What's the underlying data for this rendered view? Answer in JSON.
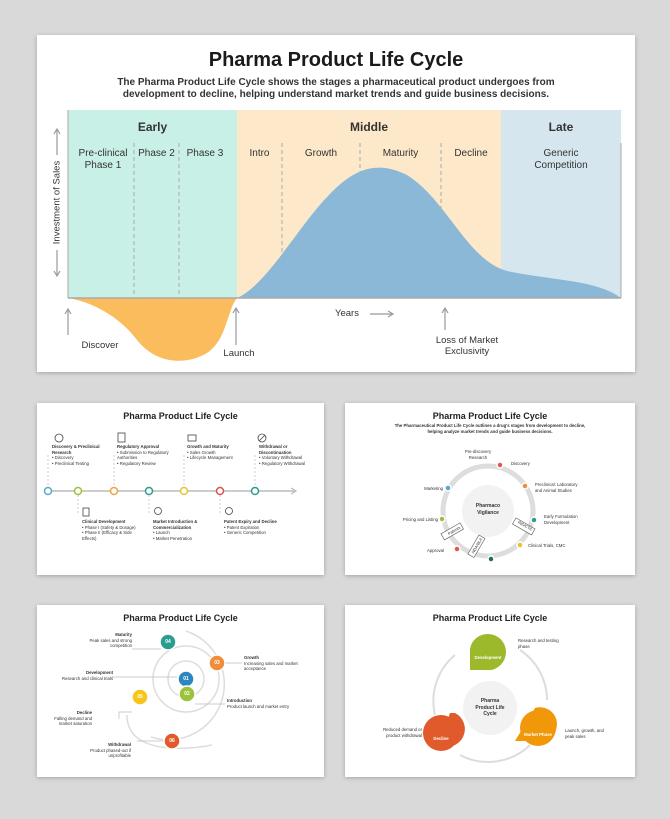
{
  "main": {
    "title": "Pharma Product Life Cycle",
    "subtitle_line1": "The Pharma Product Life Cycle shows the stages a pharmaceutical product undergoes from",
    "subtitle_line2": "development to decline, helping understand market trends and guide business decisions.",
    "stages": {
      "early": "Early",
      "middle": "Middle",
      "late": "Late"
    },
    "phases": {
      "preclinical": "Pre-clinical\nPhase 1",
      "phase2": "Phase 2",
      "phase3": "Phase 3",
      "intro": "Intro",
      "growth": "Growth",
      "maturity": "Maturity",
      "decline": "Decline",
      "generic": "Generic\nCompetition"
    },
    "y_axis_label": "Investment of Sales",
    "x_axis_label": "Years",
    "annotations": {
      "discover": "Discover",
      "launch": "Launch",
      "loss": "Loss of Market\nExclusivity"
    },
    "colors": {
      "early": "#c9f0e6",
      "middle": "#fde9c9",
      "late": "#d6e6ef",
      "curve": "#8ab8d6",
      "dip": "#fbbc5d"
    }
  },
  "thumb1": {
    "title": "Pharma Product Life Cycle",
    "top_items": [
      {
        "title": "Discovery & Preclinical Research",
        "bullets": [
          "Discovery",
          "Preclinical Testing"
        ]
      },
      {
        "title": "Regulatory Approval",
        "bullets": [
          "Submission to Regulatory Authorities",
          "Regulatory Review"
        ]
      },
      {
        "title": "Growth and Maturity",
        "bullets": [
          "Sales Growth",
          "Lifecycle Management"
        ]
      },
      {
        "title": "Withdrawal or Discontinuation",
        "bullets": [
          "Voluntary Withdrawal",
          "Regulatory Withdrawal"
        ]
      }
    ],
    "bottom_items": [
      {
        "title": "Clinical Development",
        "bullets": [
          "Phase I (Safety & Dosage)",
          "Phase II (Efficacy & Side Effects)"
        ]
      },
      {
        "title": "Market Introduction & Commercialization",
        "bullets": [
          "Launch",
          "Market Penetration"
        ]
      },
      {
        "title": "Patent Expiry and Decline",
        "bullets": [
          "Patent Expiration",
          "Generic Competition"
        ]
      }
    ]
  },
  "thumb2": {
    "title": "Pharma Product Life Cycle",
    "subtitle_line1": "The Pharmaceutical Product Life Cycle outlines a drug's stages from development to decline,",
    "subtitle_line2": "helping analyze market trends and guide business decisions.",
    "center": "Pharmaco\nVigilance",
    "labels": [
      "Pre-discovery\nResearch",
      "Discovery",
      "Preclinical: Laboratory\nand Animal Studies",
      "Early Formulation\nDevelopment",
      "Clinical Trials, CMC",
      "Approval",
      "Pricing and Listing",
      "Marketing"
    ],
    "tags": [
      "Patents",
      "IND/CTA",
      "NDA/BLA"
    ]
  },
  "thumb3": {
    "title": "Pharma Product Life Cycle",
    "items": [
      {
        "num": "01",
        "title": "Development",
        "desc": "Research and clinical trials"
      },
      {
        "num": "02",
        "title": "Introduction",
        "desc": "Product launch and market entry"
      },
      {
        "num": "03",
        "title": "Growth",
        "desc": "Increasing sales and market acceptance"
      },
      {
        "num": "04",
        "title": "Maturity",
        "desc": "Peak sales and strong competition"
      },
      {
        "num": "05",
        "title": "Decline",
        "desc": "Falling demand and market saturation"
      },
      {
        "num": "06",
        "title": "Withdrawal",
        "desc": "Product phased-out if unprofitable"
      }
    ]
  },
  "thumb4": {
    "title": "Pharma Product Life Cycle",
    "center": "Pharma\nProduct Life\nCycle",
    "petals": [
      {
        "label": "Development",
        "desc": "Research and testing\nphase"
      },
      {
        "label": "Market Phase",
        "desc": "Launch, growth, and\npeak sales"
      },
      {
        "label": "Decline",
        "desc": "Reduced demand or\nproduct withdrawal"
      }
    ]
  }
}
